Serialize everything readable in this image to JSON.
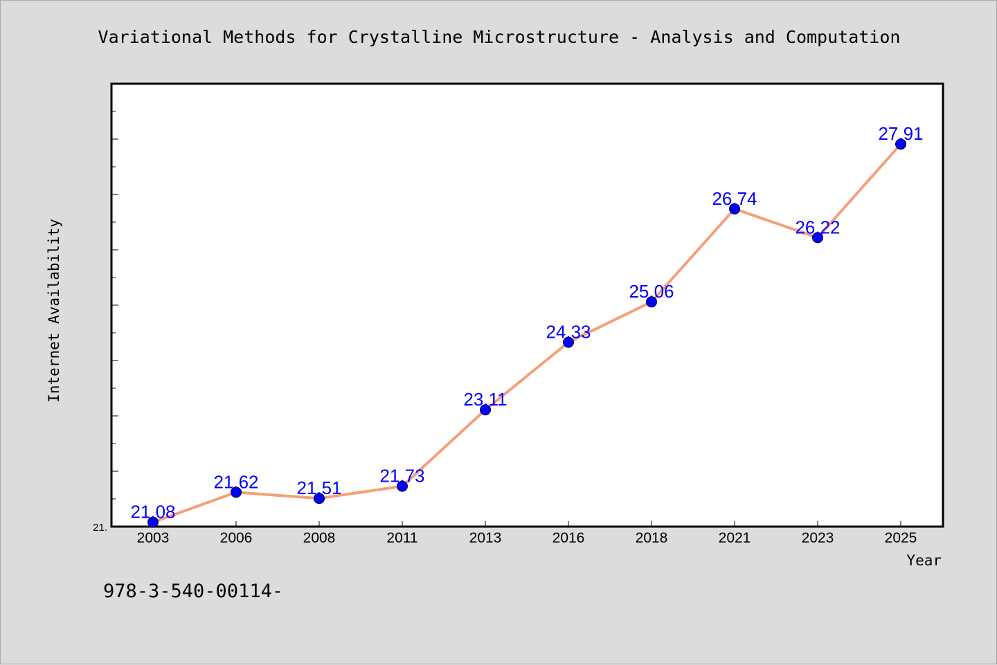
{
  "chart_data": {
    "type": "line",
    "title": "Variational Methods for Crystalline Microstructure - Analysis and Computation",
    "xlabel": "Year",
    "ylabel": "Internet Availability",
    "categories": [
      "2003",
      "2006",
      "2008",
      "2011",
      "2013",
      "2016",
      "2018",
      "2021",
      "2023",
      "2025"
    ],
    "series": [
      {
        "values": [
          21.08,
          21.62,
          21.51,
          21.73,
          23.11,
          24.33,
          25.06,
          26.74,
          26.22,
          27.91
        ]
      }
    ],
    "data_labels": [
      "21.08",
      "21.62",
      "21.51",
      "21.73",
      "23.11",
      "24.33",
      "25.06",
      "26.74",
      "26.22",
      "27.91"
    ],
    "ylim": [
      21.0,
      29.0
    ],
    "y_tick_labels": [
      "21."
    ],
    "grid": false,
    "legend": "none",
    "footnote": "978-3-540-00114-",
    "colors": {
      "background": "#dcdcdc",
      "plot_background": "#ffffff",
      "line": "#f4a07a",
      "marker": "#0000ff",
      "data_label": "#0000ff"
    }
  }
}
